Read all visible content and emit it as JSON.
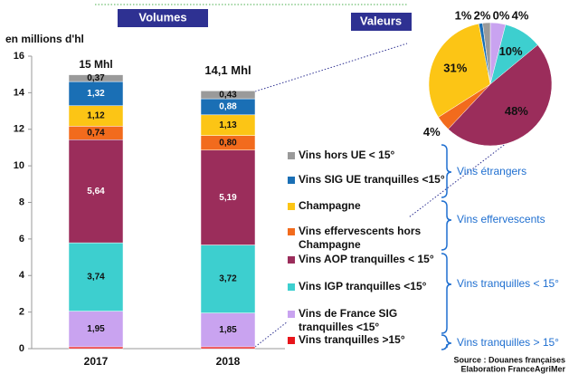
{
  "chart_data": [
    {
      "type": "stacked_bar",
      "title": "Volumes",
      "y_label": "en millions d'hl",
      "categories": [
        "2017",
        "2018"
      ],
      "total_labels": [
        "15 Mhl",
        "14,1 Mhl"
      ],
      "ylim": [
        0,
        16
      ],
      "yticks": [
        0,
        2,
        4,
        6,
        8,
        10,
        12,
        14,
        16
      ],
      "series": [
        {
          "name": "Vins tranquilles >15°",
          "color": "#e8151b",
          "values": [
            0.1,
            0.1
          ]
        },
        {
          "name": "Vins de France SIG tranquilles <15°",
          "color": "#c9a3f0",
          "values": [
            1.95,
            1.85
          ],
          "value_labels": [
            "1,95",
            "1,85"
          ]
        },
        {
          "name": "Vins IGP tranquilles <15°",
          "color": "#3dcfcf",
          "values": [
            3.74,
            3.72
          ],
          "value_labels": [
            "3,74",
            "3,72"
          ]
        },
        {
          "name": "Vins AOP tranquilles < 15°",
          "color": "#9b2d5b",
          "values": [
            5.64,
            5.19
          ],
          "value_labels": [
            "5,64",
            "5,19"
          ]
        },
        {
          "name": "Vins effervescents hors Champagne",
          "color": "#f26b1d",
          "values": [
            0.74,
            0.8
          ],
          "value_labels": [
            "0,74",
            "0,80"
          ]
        },
        {
          "name": "Champagne",
          "color": "#fcc515",
          "values": [
            1.12,
            1.13
          ],
          "value_labels": [
            "1,12",
            "1,13"
          ]
        },
        {
          "name": "Vins SIG UE tranquilles <15°",
          "color": "#1a6fb5",
          "values": [
            1.32,
            0.88
          ],
          "value_labels": [
            "1,32",
            "0,88"
          ]
        },
        {
          "name": "Vins hors UE < 15°",
          "color": "#9a9a9a",
          "values": [
            0.37,
            0.43
          ],
          "value_labels": [
            "0,37",
            "0,43"
          ]
        }
      ],
      "legend_groups": [
        "Vins étrangers",
        "Vins effervescents",
        "Vins tranquilles < 15°",
        "Vins tranquilles > 15°"
      ]
    },
    {
      "type": "pie",
      "title": "Valeurs",
      "values": [
        0,
        4,
        10,
        48,
        4,
        31,
        1,
        2
      ],
      "value_labels": [
        "0%",
        "4%",
        "10%",
        "48%",
        "4%",
        "31%",
        "1%",
        "2%"
      ],
      "colors": [
        "#e8151b",
        "#c9a3f0",
        "#3dcfcf",
        "#9b2d5b",
        "#f26b1d",
        "#fcc515",
        "#1a6fb5",
        "#9a9a9a"
      ]
    }
  ],
  "source": [
    "Source : Douanes françaises",
    "Elaboration FranceAgriMer"
  ]
}
